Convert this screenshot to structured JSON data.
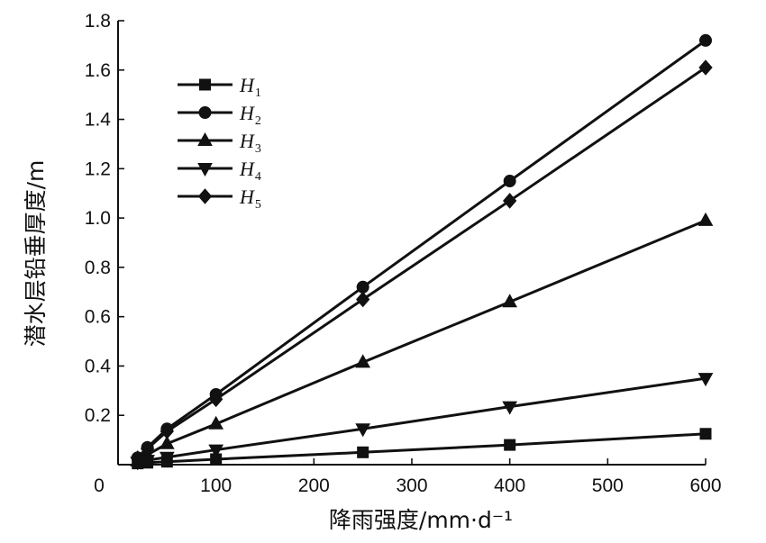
{
  "chart_data": {
    "type": "line",
    "xlabel": "降雨强度/mm·d⁻¹",
    "ylabel": "潜水层铅垂厚度/m",
    "xlim": [
      0,
      600
    ],
    "ylim": [
      0,
      1.8
    ],
    "x_ticks": [
      "0",
      "100",
      "200",
      "300",
      "400",
      "500",
      "600"
    ],
    "y_ticks": [
      "0.2",
      "0.4",
      "0.6",
      "0.8",
      "1.0",
      "1.2",
      "1.4",
      "1.6",
      "1.8"
    ],
    "grid": false,
    "legend_position": "top-left",
    "series": [
      {
        "name": "H",
        "sub": "1",
        "marker": "square",
        "x": [
          20,
          30,
          50,
          100,
          250,
          400,
          600
        ],
        "y": [
          0.005,
          0.008,
          0.012,
          0.022,
          0.05,
          0.08,
          0.125
        ]
      },
      {
        "name": "H",
        "sub": "2",
        "marker": "circle",
        "x": [
          20,
          30,
          50,
          100,
          250,
          400,
          600
        ],
        "y": [
          0.028,
          0.07,
          0.145,
          0.285,
          0.72,
          1.15,
          1.72
        ]
      },
      {
        "name": "H",
        "sub": "3",
        "marker": "triangle-up",
        "x": [
          20,
          30,
          50,
          100,
          250,
          400,
          600
        ],
        "y": [
          0.015,
          0.04,
          0.085,
          0.165,
          0.415,
          0.66,
          0.99
        ]
      },
      {
        "name": "H",
        "sub": "4",
        "marker": "triangle-down",
        "x": [
          20,
          30,
          50,
          100,
          250,
          400,
          600
        ],
        "y": [
          0.01,
          0.018,
          0.03,
          0.06,
          0.145,
          0.235,
          0.35
        ]
      },
      {
        "name": "H",
        "sub": "5",
        "marker": "diamond",
        "x": [
          20,
          30,
          50,
          100,
          250,
          400,
          600
        ],
        "y": [
          0.026,
          0.065,
          0.135,
          0.265,
          0.67,
          1.07,
          1.61
        ]
      }
    ]
  }
}
